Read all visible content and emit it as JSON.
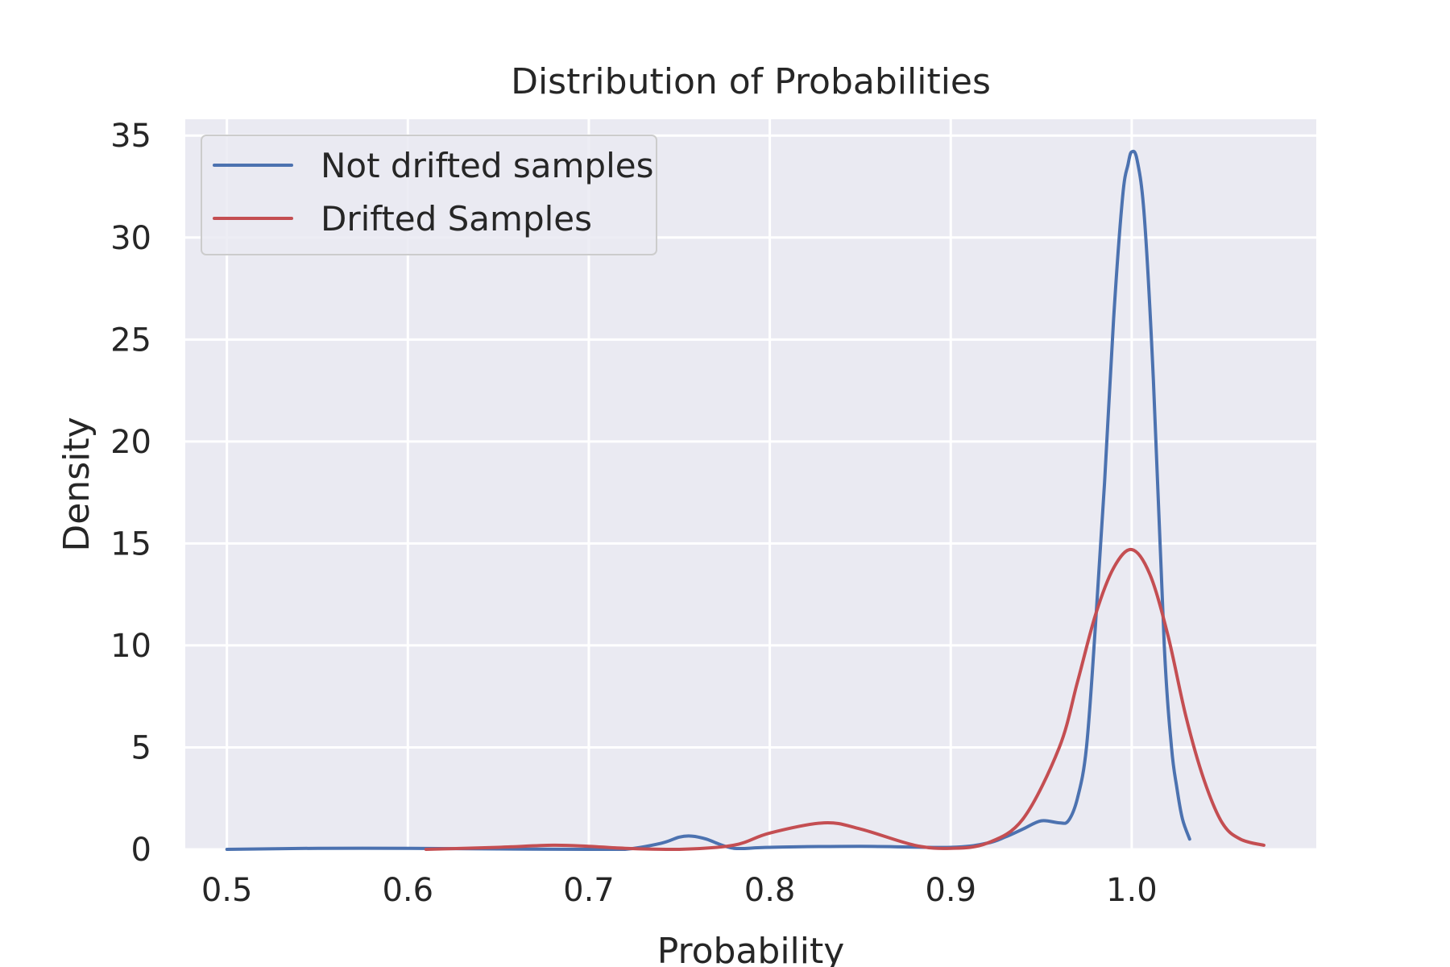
{
  "chart_data": {
    "type": "line",
    "title": "Distribution of Probabilities",
    "xlabel": "Probability",
    "ylabel": "Density",
    "xlim": [
      0.477,
      1.102
    ],
    "ylim": [
      0,
      35.8
    ],
    "xticks": [
      0.5,
      0.6,
      0.7,
      0.8,
      0.9,
      1.0
    ],
    "xtick_labels": [
      "0.5",
      "0.6",
      "0.7",
      "0.8",
      "0.9",
      "1.0"
    ],
    "yticks": [
      0,
      5,
      10,
      15,
      20,
      25,
      30,
      35
    ],
    "ytick_labels": [
      "0",
      "5",
      "10",
      "15",
      "20",
      "25",
      "30",
      "35"
    ],
    "grid": true,
    "legend_position": "top-left",
    "series": [
      {
        "name": "Not drifted samples",
        "color": "#4c72b0",
        "x": [
          0.5,
          0.55,
          0.6,
          0.65,
          0.7,
          0.72,
          0.74,
          0.75,
          0.757,
          0.765,
          0.78,
          0.8,
          0.85,
          0.9,
          0.92,
          0.93,
          0.94,
          0.95,
          0.96,
          0.965,
          0.97,
          0.975,
          0.98,
          0.985,
          0.99,
          0.995,
          0.998,
          1.0,
          1.003,
          1.007,
          1.012,
          1.018,
          1.022,
          1.025,
          1.028,
          1.032
        ],
        "values": [
          0.0,
          0.05,
          0.05,
          0.02,
          0.0,
          0.0,
          0.3,
          0.6,
          0.65,
          0.5,
          0.05,
          0.1,
          0.15,
          0.1,
          0.3,
          0.6,
          1.0,
          1.4,
          1.3,
          1.4,
          2.5,
          5.0,
          11.0,
          18.0,
          26.0,
          32.0,
          33.6,
          34.2,
          33.8,
          31.0,
          23.0,
          10.0,
          5.0,
          3.0,
          1.5,
          0.5
        ]
      },
      {
        "name": "Drifted Samples",
        "color": "#c44e52",
        "x": [
          0.61,
          0.65,
          0.68,
          0.7,
          0.72,
          0.75,
          0.78,
          0.8,
          0.83,
          0.85,
          0.88,
          0.9,
          0.92,
          0.94,
          0.96,
          0.97,
          0.98,
          0.99,
          1.0,
          1.01,
          1.02,
          1.03,
          1.04,
          1.05,
          1.06,
          1.073
        ],
        "values": [
          0.0,
          0.1,
          0.2,
          0.15,
          0.05,
          0.0,
          0.2,
          0.8,
          1.3,
          1.0,
          0.2,
          0.05,
          0.3,
          1.5,
          5.0,
          8.2,
          11.5,
          13.8,
          14.7,
          13.5,
          10.5,
          6.5,
          3.4,
          1.3,
          0.5,
          0.2
        ]
      }
    ]
  }
}
